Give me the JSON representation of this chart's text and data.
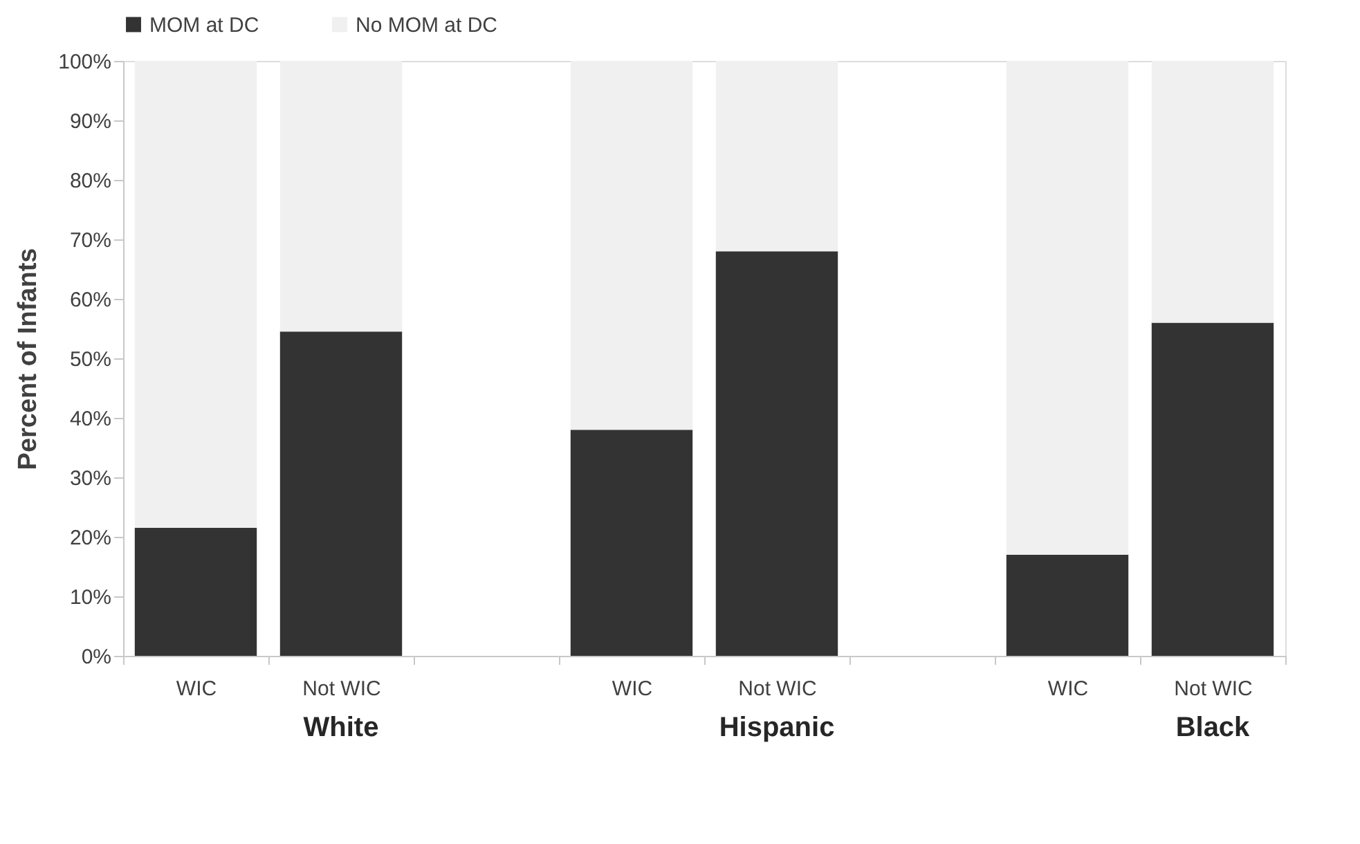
{
  "chart_data": {
    "type": "bar",
    "stacked": true,
    "categories": [
      "WIC",
      "Not WIC",
      null,
      "WIC",
      "Not WIC",
      null,
      "WIC",
      "Not WIC"
    ],
    "series": [
      {
        "name": "MOM at DC",
        "color": "#333333",
        "values": [
          21.5,
          54.5,
          null,
          38,
          68,
          null,
          17,
          56
        ]
      },
      {
        "name": "No MOM at DC",
        "color": "#f0f0f0",
        "values": [
          78.5,
          45.5,
          null,
          62,
          32,
          null,
          83,
          44
        ]
      }
    ],
    "ylabel": "Percent of Infants",
    "ylim": [
      0,
      100
    ],
    "yticks": [
      {
        "value": 0,
        "label": "0%"
      },
      {
        "value": 10,
        "label": "10%"
      },
      {
        "value": 20,
        "label": "20%"
      },
      {
        "value": 30,
        "label": "30%"
      },
      {
        "value": 40,
        "label": "40%"
      },
      {
        "value": 50,
        "label": "50%"
      },
      {
        "value": 60,
        "label": "60%"
      },
      {
        "value": 70,
        "label": "70%"
      },
      {
        "value": 80,
        "label": "80%"
      },
      {
        "value": 90,
        "label": "90%"
      },
      {
        "value": 100,
        "label": "100%"
      }
    ],
    "annotations": [
      "White",
      "Hispanic",
      "Black"
    ],
    "grid": false,
    "legend": "top"
  }
}
